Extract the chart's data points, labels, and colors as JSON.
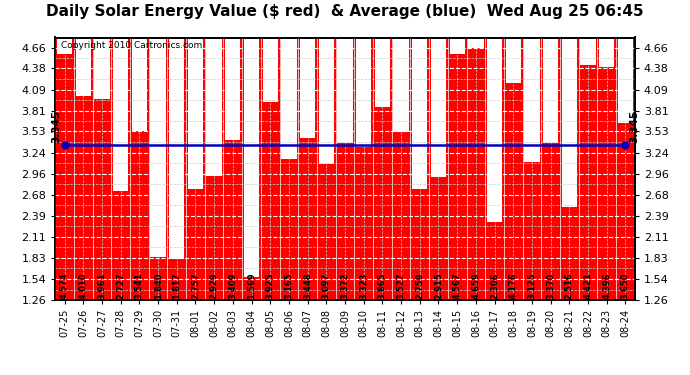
{
  "title": "Daily Solar Energy Value ($ red)  & Average (blue)  Wed Aug 25 06:45",
  "copyright": "Copyright 2010 Cartronics.com",
  "categories": [
    "07-25",
    "07-26",
    "07-27",
    "07-28",
    "07-29",
    "07-30",
    "07-31",
    "08-01",
    "08-02",
    "08-03",
    "08-04",
    "08-05",
    "08-06",
    "08-07",
    "08-08",
    "08-09",
    "08-10",
    "08-11",
    "08-12",
    "08-13",
    "08-14",
    "08-15",
    "08-16",
    "08-17",
    "08-18",
    "08-19",
    "08-20",
    "08-21",
    "08-22",
    "08-23",
    "08-24"
  ],
  "values": [
    4.574,
    4.01,
    3.961,
    2.727,
    3.541,
    1.84,
    1.817,
    2.757,
    2.929,
    3.409,
    1.569,
    3.925,
    3.165,
    3.448,
    3.097,
    3.372,
    3.323,
    3.865,
    3.527,
    2.759,
    2.915,
    4.567,
    4.659,
    2.306,
    4.176,
    3.125,
    3.37,
    2.516,
    4.421,
    4.396,
    3.65
  ],
  "average": 3.345,
  "bar_color": "#FF0000",
  "avg_color": "#0000BB",
  "bg_color": "#FFFFFF",
  "plot_bg_color": "#FF0000",
  "grid_color": "#FFFFFF",
  "grid_minor_color": "#CCCCCC",
  "ylim": [
    1.26,
    4.795
  ],
  "yticks": [
    1.26,
    1.54,
    1.83,
    2.11,
    2.39,
    2.68,
    2.96,
    3.24,
    3.53,
    3.81,
    4.09,
    4.38,
    4.66
  ],
  "title_fontsize": 11,
  "bar_text_fontsize": 6.0,
  "avg_label": "3.345",
  "avg_label_fontsize": 7.5
}
